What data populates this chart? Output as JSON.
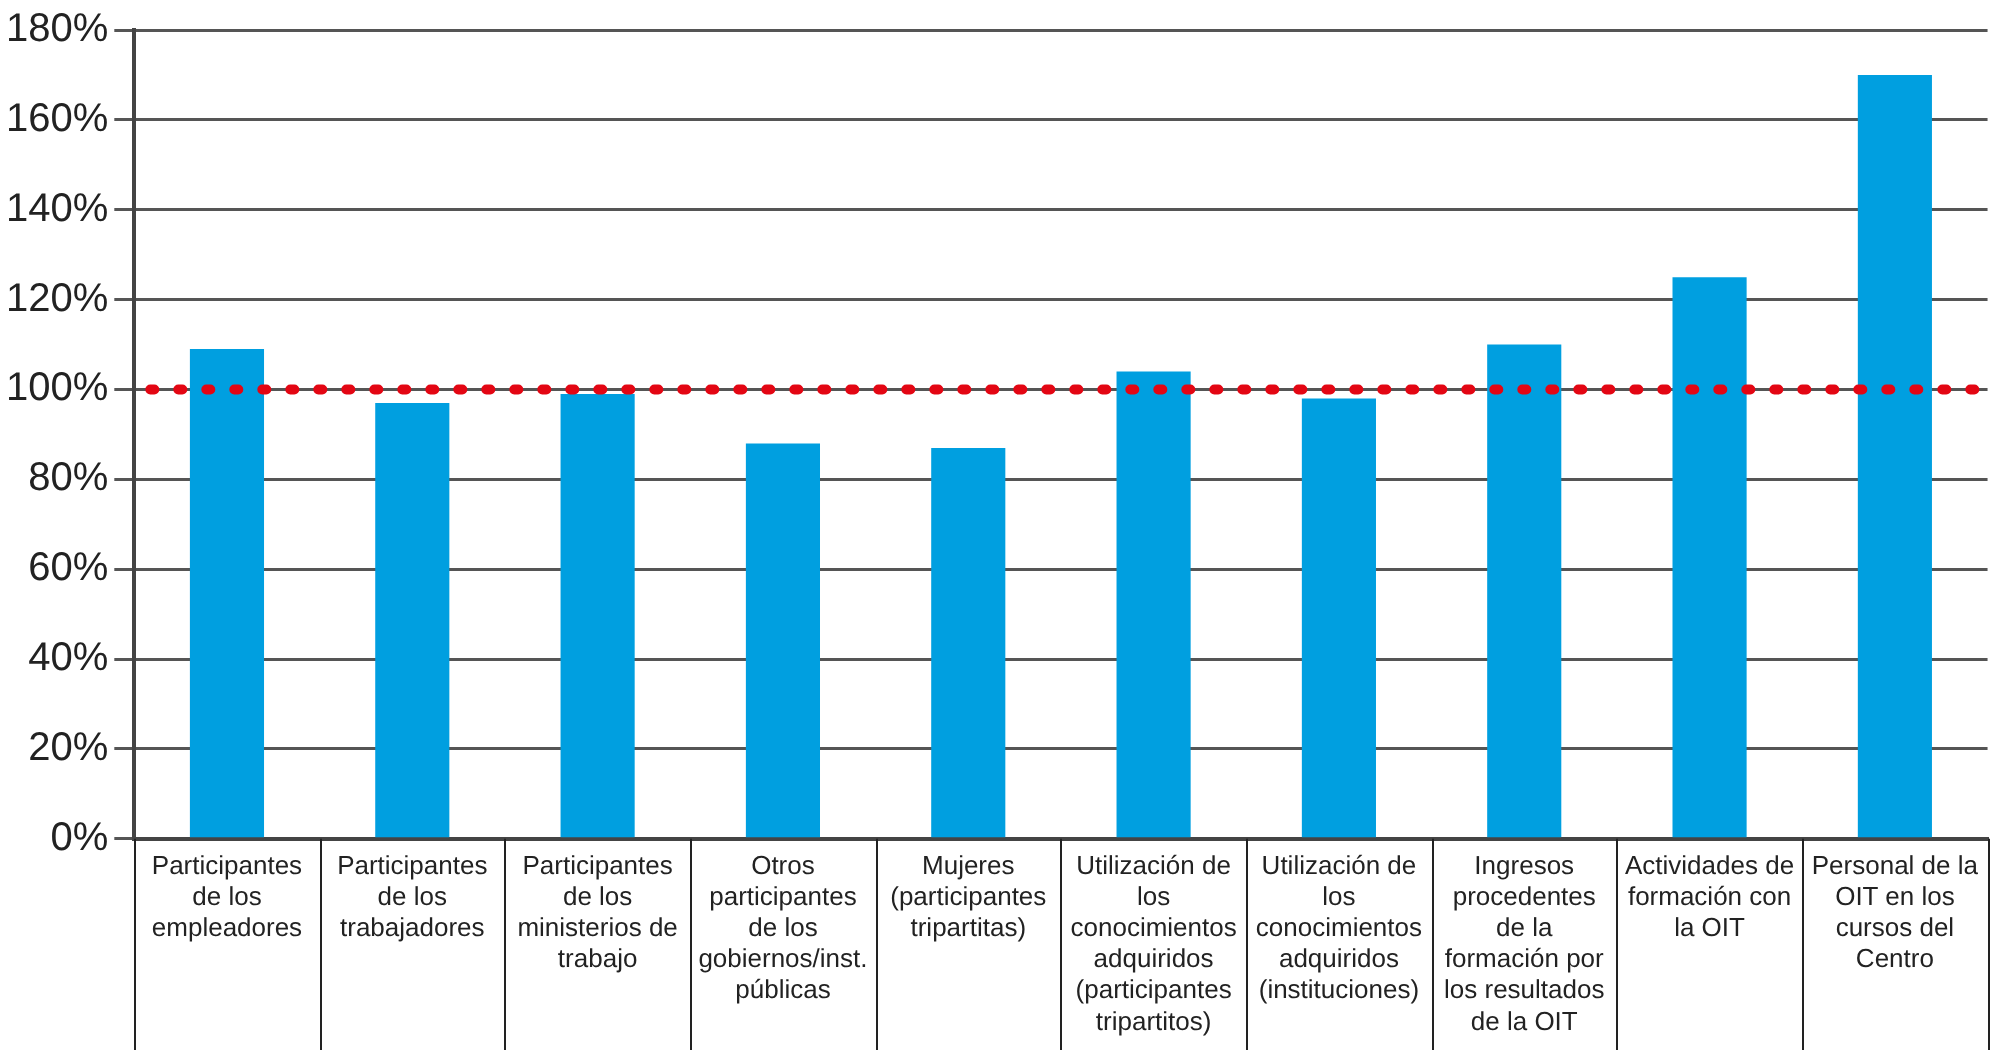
{
  "chart_data": {
    "type": "bar",
    "categories": [
      "Participantes de los empleadores",
      "Participantes de los trabajadores",
      "Participantes de los ministerios de trabajo",
      "Otros participantes de los gobiernos/inst. públicas",
      "Mujeres (participantes tripartitas)",
      "Utilización de los conocimientos adquiridos (participantes tripartitos)",
      "Utilización de los conocimientos adquiridos (instituciones)",
      "Ingresos procedentes de la formación por los resultados de la OIT",
      "Actividades de formación con la OIT",
      "Personal de la OIT en los cursos del Centro"
    ],
    "values": [
      109,
      97,
      99,
      88,
      87,
      104,
      98,
      110,
      125,
      170
    ],
    "color": "#009fe0",
    "ylim": [
      0,
      180
    ],
    "yticks": [
      {
        "value": 0,
        "label": "0%"
      },
      {
        "value": 20,
        "label": "20%"
      },
      {
        "value": 40,
        "label": "40%"
      },
      {
        "value": 60,
        "label": "60%"
      },
      {
        "value": 80,
        "label": "80%"
      },
      {
        "value": 100,
        "label": "100%"
      },
      {
        "value": 120,
        "label": "120%"
      },
      {
        "value": 140,
        "label": "140%"
      },
      {
        "value": 160,
        "label": "160%"
      },
      {
        "value": 180,
        "label": "180%"
      }
    ],
    "grid": "y",
    "ref_lines": [
      {
        "axis": "y",
        "value": 100,
        "color": "#e30613",
        "line_style": "dotted"
      }
    ]
  }
}
